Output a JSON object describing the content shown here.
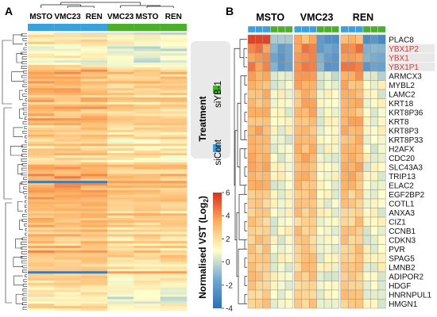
{
  "panels": {
    "a": {
      "label": "A",
      "groups": [
        "MSTO",
        "VMC23",
        "REN",
        "VMC23",
        "MSTO",
        "REN"
      ]
    },
    "b": {
      "label": "B",
      "groups": [
        "MSTO",
        "VMC23",
        "REN"
      ],
      "genes": [
        "PLAC8",
        "YBX1P2",
        "YBX1",
        "YBX1P1",
        "ARMCX3",
        "MYBL2",
        "LAMC2",
        "KRT18",
        "KRT8P36",
        "KRT8",
        "KRT8P3",
        "KRT8P33",
        "H2AFX",
        "CDC20",
        "SLC43A3",
        "TRIP13",
        "ELAC2",
        "EGF2BP2",
        "COTL1",
        "ANXA3",
        "CIZ1",
        "CCNB1",
        "CDKN3",
        "PVR",
        "SPAG5",
        "LMNB2",
        "ADIPOR2",
        "HDGF",
        "HNRNPUL1",
        "HMGN1"
      ],
      "highlighted_genes": [
        "YBX1P2",
        "YBX1",
        "YBX1P1"
      ],
      "highlight_color": "#d43a3a"
    }
  },
  "legend": {
    "treatment": {
      "title": "Treatment",
      "items": [
        {
          "label": "siYB-1",
          "color": "#4caf2c"
        },
        {
          "label": "siCont",
          "color": "#3aa0e0"
        }
      ]
    },
    "colorscale": {
      "title": "Normalised VST (Log",
      "title_sub": "2",
      "title_end": ")",
      "ticks": [
        6,
        4,
        2,
        0,
        -2,
        -4
      ],
      "range": [
        -4,
        6
      ],
      "colors": [
        "#2c6fb3",
        "#74a9cf",
        "#ffffcc",
        "#fdae61",
        "#d7301f"
      ]
    }
  },
  "colors": {
    "siCont": "#3aa0e0",
    "siYB1": "#4caf2c",
    "grid": "#9a9a9a",
    "dendrogram": "#222222"
  }
}
